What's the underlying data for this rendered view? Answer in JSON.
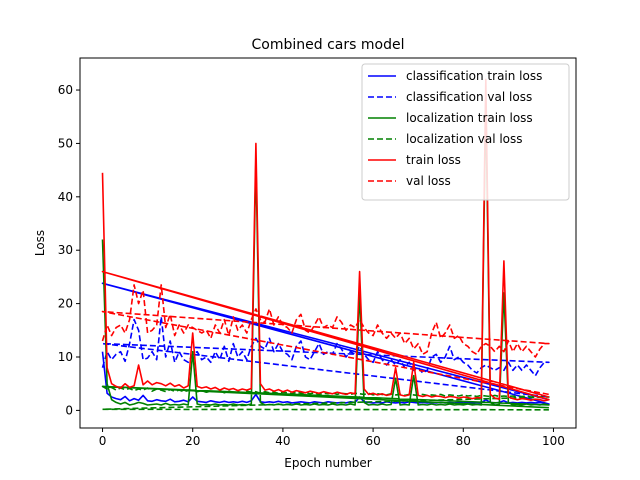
{
  "chart_data": {
    "type": "line",
    "title": "Combined cars model",
    "xlabel": "Epoch number",
    "ylabel": "Loss",
    "xlim": [
      -5,
      105
    ],
    "ylim": [
      -3.3,
      66
    ],
    "xticks": [
      0,
      20,
      40,
      60,
      80,
      100
    ],
    "yticks": [
      0,
      10,
      20,
      30,
      40,
      50,
      60
    ],
    "grid": false,
    "legend_position": "top-right",
    "series": [
      {
        "name": "classification train loss",
        "color": "#0000ff",
        "dash": "solid",
        "x": [
          0,
          1,
          2,
          3,
          4,
          5,
          6,
          7,
          8,
          9,
          10,
          11,
          12,
          13,
          14,
          15,
          16,
          17,
          18,
          19,
          20,
          21,
          22,
          23,
          24,
          25,
          26,
          27,
          28,
          29,
          30,
          31,
          32,
          33,
          34,
          35,
          36,
          37,
          38,
          39,
          40,
          41,
          42,
          43,
          44,
          45,
          46,
          47,
          48,
          49,
          50,
          51,
          52,
          53,
          54,
          55,
          56,
          57,
          58,
          59,
          60,
          61,
          62,
          63,
          64,
          65,
          66,
          67,
          68,
          69,
          70,
          71,
          72,
          73,
          74,
          75,
          76,
          77,
          78,
          79,
          80,
          81,
          82,
          83,
          84,
          85,
          86,
          87,
          88,
          89,
          90,
          91,
          92,
          93,
          94,
          95,
          96,
          97,
          98,
          99,
          0,
          99
        ],
        "y": [
          11,
          3.2,
          2.5,
          2.2,
          2.0,
          2.6,
          1.8,
          2.2,
          1.9,
          2.8,
          1.8,
          1.7,
          2.0,
          1.8,
          1.7,
          2.1,
          1.6,
          1.7,
          1.9,
          1.6,
          2.5,
          1.7,
          1.6,
          1.5,
          1.8,
          1.6,
          1.5,
          1.7,
          1.5,
          1.6,
          1.5,
          1.7,
          1.5,
          1.8,
          3.0,
          1.6,
          1.5,
          1.6,
          1.5,
          1.7,
          1.5,
          1.6,
          1.4,
          1.5,
          1.6,
          1.5,
          1.4,
          1.6,
          1.5,
          1.4,
          1.6,
          1.5,
          1.4,
          1.5,
          1.4,
          1.6,
          1.5,
          2.5,
          1.6,
          1.5,
          1.4,
          1.5,
          1.4,
          1.6,
          1.5,
          1.4,
          1.5,
          1.4,
          1.6,
          1.5,
          1.4,
          1.5,
          1.4,
          1.5,
          1.4,
          1.5,
          1.4,
          1.5,
          1.4,
          1.5,
          1.4,
          1.5,
          1.4,
          1.5,
          1.4,
          2.0,
          1.5,
          1.4,
          1.5,
          1.8,
          1.4,
          1.5,
          1.4,
          1.5,
          1.4,
          1.5,
          1.4,
          1.5,
          1.4,
          1.2,
          23.8,
          2.0
        ]
      },
      {
        "name": "classification val loss",
        "color": "#0000ff",
        "dash": "dashed",
        "x": [
          0,
          1,
          2,
          3,
          4,
          5,
          6,
          7,
          8,
          9,
          10,
          11,
          12,
          13,
          14,
          15,
          16,
          17,
          18,
          19,
          20,
          21,
          22,
          23,
          24,
          25,
          26,
          27,
          28,
          29,
          30,
          31,
          32,
          33,
          34,
          35,
          36,
          37,
          38,
          39,
          40,
          41,
          42,
          43,
          44,
          45,
          46,
          47,
          48,
          49,
          50,
          51,
          52,
          53,
          54,
          55,
          56,
          57,
          58,
          59,
          60,
          61,
          62,
          63,
          64,
          65,
          66,
          67,
          68,
          69,
          70,
          71,
          72,
          73,
          74,
          75,
          76,
          77,
          78,
          79,
          80,
          81,
          82,
          83,
          84,
          85,
          86,
          87,
          88,
          89,
          90,
          91,
          92,
          93,
          94,
          95,
          96,
          97,
          98,
          99,
          0,
          99
        ],
        "y": [
          8.0,
          11,
          9.5,
          10.5,
          11,
          9.2,
          12.5,
          17,
          15,
          9.5,
          9.8,
          11,
          9.5,
          17.5,
          10,
          13,
          9,
          11,
          9.5,
          9,
          10.5,
          11,
          9.5,
          10,
          9,
          11,
          9.5,
          12,
          9.2,
          12.5,
          10,
          11,
          9.5,
          12,
          13.5,
          12,
          11.5,
          13.5,
          11,
          12.5,
          11,
          10.5,
          9.5,
          12,
          13,
          10,
          9.5,
          11,
          12.5,
          10.5,
          11,
          10.5,
          12.5,
          11.5,
          10,
          11,
          10.5,
          12,
          10.5,
          9.5,
          9,
          11,
          9.5,
          8.5,
          9.5,
          8.5,
          9.5,
          8,
          9,
          7.5,
          8,
          7,
          7.5,
          10,
          10.5,
          9,
          10,
          12,
          9.5,
          10,
          9,
          8.5,
          7.5,
          7,
          8,
          8.5,
          8,
          7.5,
          8,
          7.5,
          9,
          7.5,
          8.5,
          7.5,
          8.5,
          7.5,
          6.5,
          8,
          9,
          9,
          12.5,
          2.5
        ]
      },
      {
        "name": "localization train loss",
        "color": "#008000",
        "dash": "solid",
        "x": [
          0,
          1,
          2,
          3,
          4,
          5,
          6,
          7,
          8,
          9,
          10,
          11,
          12,
          13,
          14,
          15,
          16,
          17,
          18,
          19,
          20,
          21,
          22,
          23,
          24,
          25,
          26,
          27,
          28,
          29,
          30,
          31,
          32,
          33,
          34,
          35,
          36,
          37,
          38,
          39,
          40,
          41,
          42,
          43,
          44,
          45,
          46,
          47,
          48,
          49,
          50,
          51,
          52,
          53,
          54,
          55,
          56,
          57,
          58,
          59,
          60,
          61,
          62,
          63,
          64,
          65,
          66,
          67,
          68,
          69,
          70,
          71,
          72,
          73,
          74,
          75,
          76,
          77,
          78,
          79,
          80,
          81,
          82,
          83,
          84,
          85,
          86,
          87,
          88,
          89,
          90,
          91,
          92,
          93,
          94,
          95,
          96,
          97,
          98,
          99,
          0,
          99
        ],
        "y": [
          32,
          5,
          2.0,
          1.5,
          1.2,
          1.5,
          1.0,
          1.2,
          1.5,
          1.3,
          1.0,
          1.1,
          1.2,
          1.0,
          1.3,
          1.0,
          1.1,
          1.0,
          1.2,
          1.0,
          11,
          1.2,
          1.0,
          1.1,
          1.0,
          1.2,
          1.0,
          1.1,
          1.0,
          1.2,
          1.0,
          1.1,
          1.0,
          1.2,
          47,
          1.5,
          1.0,
          1.1,
          1.0,
          1.2,
          1.0,
          1.1,
          1.0,
          1.2,
          1.0,
          1.1,
          1.0,
          1.2,
          1.0,
          1.1,
          1.0,
          1.2,
          1.0,
          1.1,
          1.0,
          1.2,
          1.0,
          22,
          1.5,
          1.0,
          1.1,
          1.0,
          1.2,
          1.0,
          1.1,
          6,
          1.0,
          1.1,
          1.0,
          6.5,
          1.0,
          1.1,
          1.0,
          1.2,
          1.0,
          1.1,
          1.0,
          1.2,
          1.0,
          1.1,
          1.0,
          1.2,
          1.0,
          1.1,
          1.0,
          58,
          1.5,
          1.0,
          1.1,
          22,
          1.5,
          1.0,
          1.1,
          1.0,
          1.2,
          1.0,
          1.1,
          1.0,
          1.2,
          1.0,
          4.5,
          0.5
        ]
      },
      {
        "name": "localization val loss",
        "color": "#008000",
        "dash": "dashed",
        "x": [
          0,
          1,
          2,
          3,
          4,
          5,
          6,
          7,
          8,
          9,
          10,
          11,
          12,
          13,
          14,
          15,
          16,
          17,
          18,
          19,
          20,
          21,
          22,
          23,
          24,
          25,
          26,
          27,
          28,
          29,
          30,
          31,
          32,
          33,
          34,
          35,
          36,
          37,
          38,
          39,
          40,
          41,
          42,
          43,
          44,
          45,
          46,
          47,
          48,
          49,
          50,
          51,
          52,
          53,
          54,
          55,
          56,
          57,
          58,
          59,
          60,
          61,
          62,
          63,
          64,
          65,
          66,
          67,
          68,
          69,
          70,
          71,
          72,
          73,
          74,
          75,
          76,
          77,
          78,
          79,
          80,
          81,
          82,
          83,
          84,
          85,
          86,
          87,
          88,
          89,
          90,
          91,
          92,
          93,
          94,
          95,
          96,
          97,
          98,
          99,
          0,
          99
        ],
        "y": [
          4.5,
          4.0,
          4.3,
          3.8,
          4.2,
          3.9,
          4.1,
          3.7,
          4.0,
          3.8,
          4.2,
          3.6,
          4.0,
          3.8,
          3.5,
          3.9,
          3.6,
          3.8,
          3.5,
          3.7,
          3.8,
          3.5,
          3.7,
          3.4,
          3.6,
          3.5,
          3.7,
          3.3,
          3.6,
          3.4,
          3.5,
          3.3,
          3.6,
          3.4,
          3.5,
          3.2,
          3.5,
          3.3,
          3.4,
          3.2,
          3.4,
          3.3,
          3.1,
          3.4,
          3.2,
          3.3,
          3.1,
          3.3,
          3.0,
          3.2,
          3.1,
          3.3,
          3.0,
          3.2,
          3.1,
          3.0,
          3.2,
          3.1,
          3.0,
          3.2,
          2.9,
          3.1,
          3.0,
          2.9,
          3.1,
          2.9,
          3.0,
          2.8,
          3.0,
          2.9,
          2.8,
          3.0,
          2.8,
          2.9,
          2.8,
          3.0,
          2.7,
          2.9,
          2.8,
          2.7,
          2.9,
          2.7,
          2.8,
          2.6,
          2.8,
          2.7,
          2.6,
          2.8,
          2.6,
          2.7,
          2.6,
          2.7,
          2.5,
          2.6,
          2.7,
          2.5,
          2.6,
          2.5,
          2.6,
          2.5,
          0.2,
          0.1
        ]
      },
      {
        "name": "train loss",
        "color": "#ff0000",
        "dash": "solid",
        "x": [
          0,
          1,
          2,
          3,
          4,
          5,
          6,
          7,
          8,
          9,
          10,
          11,
          12,
          13,
          14,
          15,
          16,
          17,
          18,
          19,
          20,
          21,
          22,
          23,
          24,
          25,
          26,
          27,
          28,
          29,
          30,
          31,
          32,
          33,
          34,
          35,
          36,
          37,
          38,
          39,
          40,
          41,
          42,
          43,
          44,
          45,
          46,
          47,
          48,
          49,
          50,
          51,
          52,
          53,
          54,
          55,
          56,
          57,
          58,
          59,
          60,
          61,
          62,
          63,
          64,
          65,
          66,
          67,
          68,
          69,
          70,
          71,
          72,
          73,
          74,
          75,
          76,
          77,
          78,
          79,
          80,
          81,
          82,
          83,
          84,
          85,
          86,
          87,
          88,
          89,
          90,
          91,
          92,
          93,
          94,
          95,
          96,
          97,
          98,
          99,
          0,
          99
        ],
        "y": [
          44.5,
          8,
          5.0,
          4.5,
          4.2,
          5.0,
          4.3,
          4.6,
          8.5,
          4.8,
          5.5,
          4.8,
          5.2,
          5.0,
          4.6,
          5.1,
          4.5,
          4.8,
          4.2,
          4.6,
          14.5,
          4.5,
          4.2,
          4.4,
          4.0,
          4.3,
          3.8,
          4.2,
          3.9,
          4.1,
          3.7,
          4.0,
          3.8,
          4.1,
          50,
          5,
          3.8,
          4.0,
          3.6,
          3.9,
          3.5,
          3.8,
          3.4,
          3.7,
          3.5,
          3.3,
          3.6,
          3.4,
          3.2,
          3.5,
          3.3,
          3.1,
          3.4,
          3.2,
          3.0,
          3.3,
          3.1,
          26,
          4,
          3.0,
          3.2,
          2.9,
          3.1,
          2.8,
          3.0,
          8,
          2.9,
          2.7,
          2.9,
          9,
          2.8,
          2.6,
          2.8,
          2.5,
          2.7,
          2.6,
          2.4,
          2.6,
          2.5,
          2.3,
          2.5,
          2.4,
          2.2,
          2.4,
          2.3,
          62,
          3,
          2.3,
          2.1,
          28,
          2.5,
          2.2,
          2.0,
          2.2,
          2.1,
          1.9,
          2.1,
          2.0,
          1.8,
          2.0,
          26,
          2.5
        ]
      },
      {
        "name": "val loss",
        "color": "#ff0000",
        "dash": "dashed",
        "x": [
          0,
          1,
          2,
          3,
          4,
          5,
          6,
          7,
          8,
          9,
          10,
          11,
          12,
          13,
          14,
          15,
          16,
          17,
          18,
          19,
          20,
          21,
          22,
          23,
          24,
          25,
          26,
          27,
          28,
          29,
          30,
          31,
          32,
          33,
          34,
          35,
          36,
          37,
          38,
          39,
          40,
          41,
          42,
          43,
          44,
          45,
          46,
          47,
          48,
          49,
          50,
          51,
          52,
          53,
          54,
          55,
          56,
          57,
          58,
          59,
          60,
          61,
          62,
          63,
          64,
          65,
          66,
          67,
          68,
          69,
          70,
          71,
          72,
          73,
          74,
          75,
          76,
          77,
          78,
          79,
          80,
          81,
          82,
          83,
          84,
          85,
          86,
          87,
          88,
          89,
          90,
          91,
          92,
          93,
          94,
          95,
          96,
          97,
          98,
          99,
          0,
          99
        ],
        "y": [
          13,
          16,
          14,
          15.5,
          16,
          14.5,
          17,
          23.5,
          20,
          22.5,
          14.5,
          15,
          16,
          23.5,
          15.5,
          18,
          14,
          16,
          14.5,
          16,
          15.5,
          15,
          14.5,
          15,
          13.5,
          16,
          14.5,
          17,
          14,
          17.5,
          15,
          16,
          14.5,
          17,
          19,
          17,
          16.5,
          19,
          16,
          17.5,
          16,
          15.5,
          14.5,
          17,
          18,
          15,
          14.5,
          16,
          17.5,
          15.5,
          16,
          15.5,
          17.5,
          16.5,
          15,
          16,
          15.5,
          17,
          15.5,
          14.5,
          14,
          16,
          14.5,
          13.5,
          14.5,
          13.5,
          14.5,
          12.5,
          13.5,
          11.5,
          12.5,
          10.5,
          11,
          14.5,
          16.5,
          13.5,
          14.5,
          16,
          13.5,
          14,
          12.5,
          12,
          11,
          10.5,
          12,
          12.5,
          12,
          11,
          12,
          11,
          13,
          11,
          12.5,
          11,
          12,
          11,
          10,
          11.5,
          12.5,
          12.5,
          18.5,
          3
        ]
      }
    ]
  }
}
